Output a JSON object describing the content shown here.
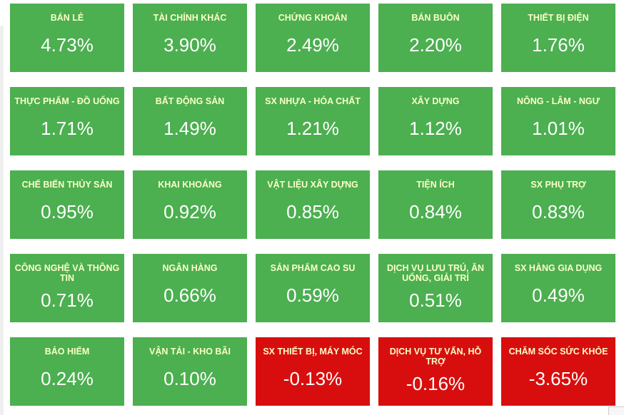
{
  "title": "Sector performance heatmap",
  "colors": {
    "positive_bg": "#4caf50",
    "negative_bg": "#d80e0e",
    "label_color": "#fbffc8",
    "value_color": "#ffffff"
  },
  "sectors": [
    {
      "label": "BÁN LẺ",
      "value": "4.73%",
      "trend": "up"
    },
    {
      "label": "TÀI CHÍNH KHÁC",
      "value": "3.90%",
      "trend": "up"
    },
    {
      "label": "CHỨNG KHOÁN",
      "value": "2.49%",
      "trend": "up"
    },
    {
      "label": "BÁN BUÔN",
      "value": "2.20%",
      "trend": "up"
    },
    {
      "label": "THIẾT BỊ ĐIỆN",
      "value": "1.76%",
      "trend": "up"
    },
    {
      "label": "THỰC PHẨM - ĐỒ UỐNG",
      "value": "1.71%",
      "trend": "up"
    },
    {
      "label": "BẤT ĐỘNG SẢN",
      "value": "1.49%",
      "trend": "up"
    },
    {
      "label": "SX NHỰA - HÓA CHẤT",
      "value": "1.21%",
      "trend": "up"
    },
    {
      "label": "XÂY DỰNG",
      "value": "1.12%",
      "trend": "up"
    },
    {
      "label": "NÔNG - LÂM - NGƯ",
      "value": "1.01%",
      "trend": "up"
    },
    {
      "label": "CHẾ BIẾN THỦY SẢN",
      "value": "0.95%",
      "trend": "up"
    },
    {
      "label": "KHAI KHOÁNG",
      "value": "0.92%",
      "trend": "up"
    },
    {
      "label": "VẬT LIỆU XÂY DỰNG",
      "value": "0.85%",
      "trend": "up"
    },
    {
      "label": "TIỆN ÍCH",
      "value": "0.84%",
      "trend": "up"
    },
    {
      "label": "SX PHỤ TRỢ",
      "value": "0.83%",
      "trend": "up"
    },
    {
      "label": "CÔNG NGHỆ VÀ THÔNG TIN",
      "value": "0.71%",
      "trend": "up"
    },
    {
      "label": "NGÂN HÀNG",
      "value": "0.66%",
      "trend": "up"
    },
    {
      "label": "SẢN PHẨM CAO SU",
      "value": "0.59%",
      "trend": "up"
    },
    {
      "label": "DỊCH VỤ LƯU TRÚ, ĂN UỐNG, GIẢI TRÍ",
      "value": "0.51%",
      "trend": "up"
    },
    {
      "label": "SX HÀNG GIA DỤNG",
      "value": "0.49%",
      "trend": "up"
    },
    {
      "label": "BẢO HIỂM",
      "value": "0.24%",
      "trend": "up"
    },
    {
      "label": "VẬN TẢI - KHO BÃI",
      "value": "0.10%",
      "trend": "up"
    },
    {
      "label": "SX THIẾT BỊ, MÁY MÓC",
      "value": "-0.13%",
      "trend": "down"
    },
    {
      "label": "DỊCH VỤ TƯ VẤN, HỖ TRỢ",
      "value": "-0.16%",
      "trend": "down"
    },
    {
      "label": "CHĂM SÓC SỨC KHỎE",
      "value": "-3.65%",
      "trend": "down"
    }
  ],
  "chart_data": {
    "type": "heatmap",
    "title": "Sector performance heatmap (VN stock market sectors, % change)",
    "categories": [
      "BÁN LẺ",
      "TÀI CHÍNH KHÁC",
      "CHỨNG KHOÁN",
      "BÁN BUÔN",
      "THIẾT BỊ ĐIỆN",
      "THỰC PHẨM - ĐỒ UỐNG",
      "BẤT ĐỘNG SẢN",
      "SX NHỰA - HÓA CHẤT",
      "XÂY DỰNG",
      "NÔNG - LÂM - NGƯ",
      "CHẾ BIẾN THỦY SẢN",
      "KHAI KHOÁNG",
      "VẬT LIỆU XÂY DỰNG",
      "TIỆN ÍCH",
      "SX PHỤ TRỢ",
      "CÔNG NGHỆ VÀ THÔNG TIN",
      "NGÂN HÀNG",
      "SẢN PHẨM CAO SU",
      "DỊCH VỤ LƯU TRÚ, ĂN UỐNG, GIẢI TRÍ",
      "SX HÀNG GIA DỤNG",
      "BẢO HIỂM",
      "VẬN TẢI - KHO BÃI",
      "SX THIẾT BỊ, MÁY MÓC",
      "DỊCH VỤ TƯ VẤN, HỖ TRỢ",
      "CHĂM SÓC SỨC KHỎE"
    ],
    "values": [
      4.73,
      3.9,
      2.49,
      2.2,
      1.76,
      1.71,
      1.49,
      1.21,
      1.12,
      1.01,
      0.95,
      0.92,
      0.85,
      0.84,
      0.83,
      0.71,
      0.66,
      0.59,
      0.51,
      0.49,
      0.24,
      0.1,
      -0.13,
      -0.16,
      -3.65
    ],
    "layout": {
      "rows": 5,
      "cols": 5,
      "order": "row-major, sorted descending"
    },
    "color_rule": "value >= 0 -> green tile, value < 0 -> red tile"
  }
}
